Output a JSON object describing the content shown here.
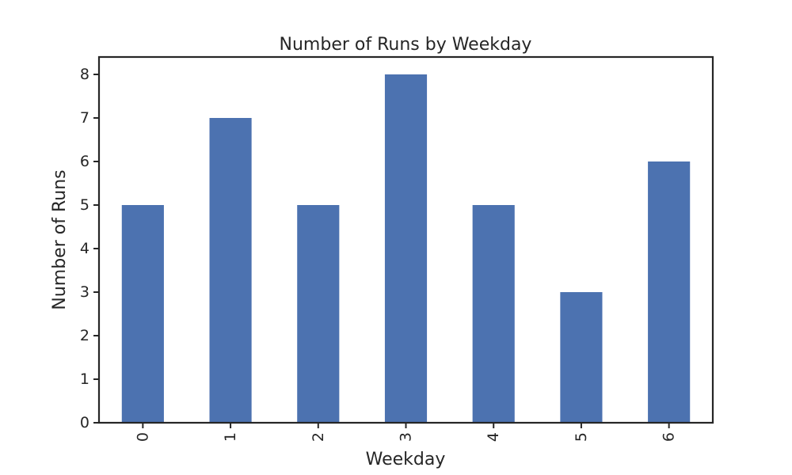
{
  "chart_data": {
    "type": "bar",
    "title": "Number of Runs by Weekday",
    "xlabel": "Weekday",
    "ylabel": "Number of Runs",
    "categories": [
      "0",
      "1",
      "2",
      "3",
      "4",
      "5",
      "6"
    ],
    "values": [
      5,
      7,
      5,
      8,
      5,
      3,
      6
    ],
    "ylim": [
      0,
      8.4
    ],
    "yticks": [
      0,
      1,
      2,
      3,
      4,
      5,
      6,
      7,
      8
    ],
    "bar_color": "#4c72b0",
    "grid": false,
    "legend": "none",
    "xtick_rotation": "vertical"
  }
}
